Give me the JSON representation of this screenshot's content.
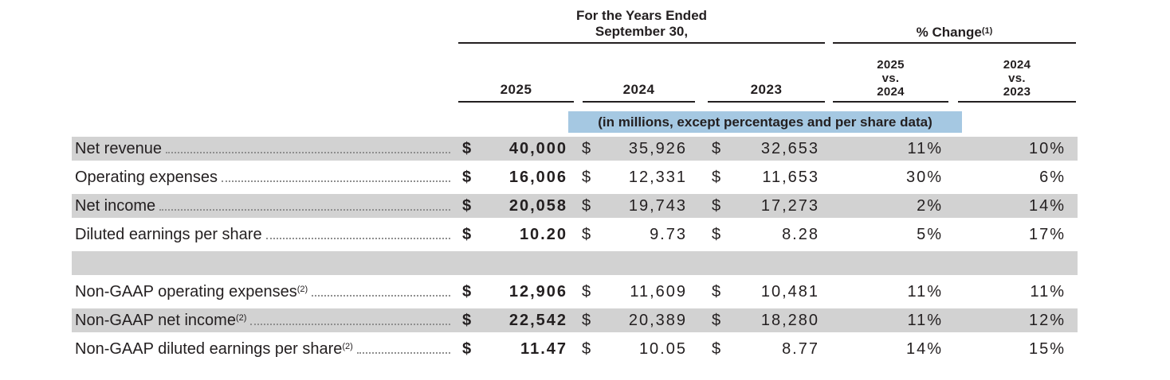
{
  "document": {
    "currency_symbol": "$",
    "header": {
      "period_title_line1": "For the Years Ended",
      "period_title_line2": "September 30,",
      "pct_change_title": "% Change",
      "pct_change_footnote": "(1)",
      "year_columns": [
        "2025",
        "2024",
        "2023"
      ],
      "change_col_1": [
        "2025",
        "vs.",
        "2024"
      ],
      "change_col_2": [
        "2024",
        "vs.",
        "2023"
      ],
      "units_note": "(in millions, except percentages and per share data)"
    },
    "rows": [
      {
        "label": "Net revenue",
        "footnote": "",
        "y2025": "40,000",
        "y2024": "35,926",
        "y2023": "32,653",
        "chg_2025_vs_2024": "11%",
        "chg_2024_vs_2023": "10%"
      },
      {
        "label": "Operating expenses",
        "footnote": "",
        "y2025": "16,006",
        "y2024": "12,331",
        "y2023": "11,653",
        "chg_2025_vs_2024": "30%",
        "chg_2024_vs_2023": "6%"
      },
      {
        "label": "Net income",
        "footnote": "",
        "y2025": "20,058",
        "y2024": "19,743",
        "y2023": "17,273",
        "chg_2025_vs_2024": "2%",
        "chg_2024_vs_2023": "14%"
      },
      {
        "label": "Diluted earnings per share",
        "footnote": "",
        "y2025": "10.20",
        "y2024": "9.73",
        "y2023": "8.28",
        "chg_2025_vs_2024": "5%",
        "chg_2024_vs_2023": "17%"
      },
      {
        "label": "Non-GAAP operating expenses",
        "footnote": "(2)",
        "y2025": "12,906",
        "y2024": "11,609",
        "y2023": "10,481",
        "chg_2025_vs_2024": "11%",
        "chg_2024_vs_2023": "11%"
      },
      {
        "label": "Non-GAAP net income",
        "footnote": "(2)",
        "y2025": "22,542",
        "y2024": "20,389",
        "y2023": "18,280",
        "chg_2025_vs_2024": "11%",
        "chg_2024_vs_2023": "12%"
      },
      {
        "label": "Non-GAAP diluted earnings per share",
        "footnote": "(2)",
        "y2025": "11.47",
        "y2024": "10.05",
        "y2023": "8.77",
        "chg_2025_vs_2024": "14%",
        "chg_2024_vs_2023": "15%"
      }
    ]
  },
  "colors": {
    "row_shade": "#d2d2d2",
    "note_highlight": "#a5c8e2",
    "text": "#231f20",
    "rule": "#231f20",
    "leader_dots": "#8f8f8f"
  }
}
